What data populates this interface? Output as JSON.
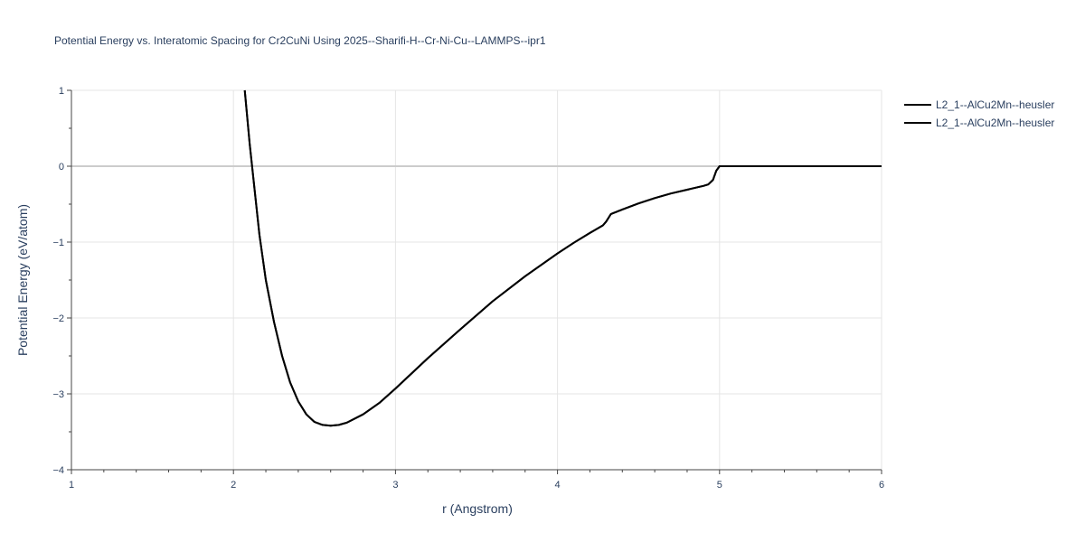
{
  "chart_data": {
    "type": "line",
    "title": "Potential Energy vs. Interatomic Spacing for Cr2CuNi Using 2025--Sharifi-H--Cr-Ni-Cu--LAMMPS--ipr1",
    "xlabel": "r (Angstrom)",
    "ylabel": "Potential Energy (eV/atom)",
    "xlim": [
      1,
      6
    ],
    "ylim": [
      -4,
      1
    ],
    "xticks": [
      "1",
      "2",
      "3",
      "4",
      "5",
      "6"
    ],
    "yticks": [
      "1",
      "0",
      "−1",
      "−2",
      "−3",
      "−4"
    ],
    "grid": true,
    "legend_position": "top-right",
    "series_color": "#000000",
    "series": [
      {
        "name": "L2_1--AlCu2Mn--heusler",
        "x": [
          2.07,
          2.1,
          2.13,
          2.16,
          2.2,
          2.25,
          2.3,
          2.35,
          2.4,
          2.45,
          2.5,
          2.55,
          2.6,
          2.65,
          2.7,
          2.8,
          2.9,
          3.0,
          3.2,
          3.4,
          3.6,
          3.8,
          4.0,
          4.1,
          4.2,
          4.28,
          4.3,
          4.33,
          4.4,
          4.5,
          4.6,
          4.7,
          4.8,
          4.9,
          4.93,
          4.96,
          4.98,
          5.0,
          5.5,
          6.0
        ],
        "y": [
          1.0,
          0.3,
          -0.3,
          -0.9,
          -1.5,
          -2.05,
          -2.5,
          -2.85,
          -3.1,
          -3.27,
          -3.37,
          -3.41,
          -3.42,
          -3.41,
          -3.38,
          -3.27,
          -3.12,
          -2.93,
          -2.53,
          -2.15,
          -1.78,
          -1.45,
          -1.15,
          -1.01,
          -0.88,
          -0.78,
          -0.73,
          -0.63,
          -0.57,
          -0.49,
          -0.42,
          -0.36,
          -0.31,
          -0.26,
          -0.24,
          -0.18,
          -0.06,
          0.0,
          0.0,
          0.0
        ]
      },
      {
        "name": "L2_1--AlCu2Mn--heusler",
        "x": [
          2.07,
          2.1,
          2.13,
          2.16,
          2.2,
          2.25,
          2.3,
          2.35,
          2.4,
          2.45,
          2.5,
          2.55,
          2.6,
          2.65,
          2.7,
          2.8,
          2.9,
          3.0,
          3.2,
          3.4,
          3.6,
          3.8,
          4.0,
          4.1,
          4.2,
          4.28,
          4.3,
          4.33,
          4.4,
          4.5,
          4.6,
          4.7,
          4.8,
          4.9,
          4.93,
          4.96,
          4.98,
          5.0,
          5.5,
          6.0
        ],
        "y": [
          1.0,
          0.3,
          -0.3,
          -0.9,
          -1.5,
          -2.05,
          -2.5,
          -2.85,
          -3.1,
          -3.27,
          -3.37,
          -3.41,
          -3.42,
          -3.41,
          -3.38,
          -3.27,
          -3.12,
          -2.93,
          -2.53,
          -2.15,
          -1.78,
          -1.45,
          -1.15,
          -1.01,
          -0.88,
          -0.78,
          -0.73,
          -0.63,
          -0.57,
          -0.49,
          -0.42,
          -0.36,
          -0.31,
          -0.26,
          -0.24,
          -0.18,
          -0.06,
          0.0,
          0.0,
          0.0
        ]
      }
    ]
  }
}
